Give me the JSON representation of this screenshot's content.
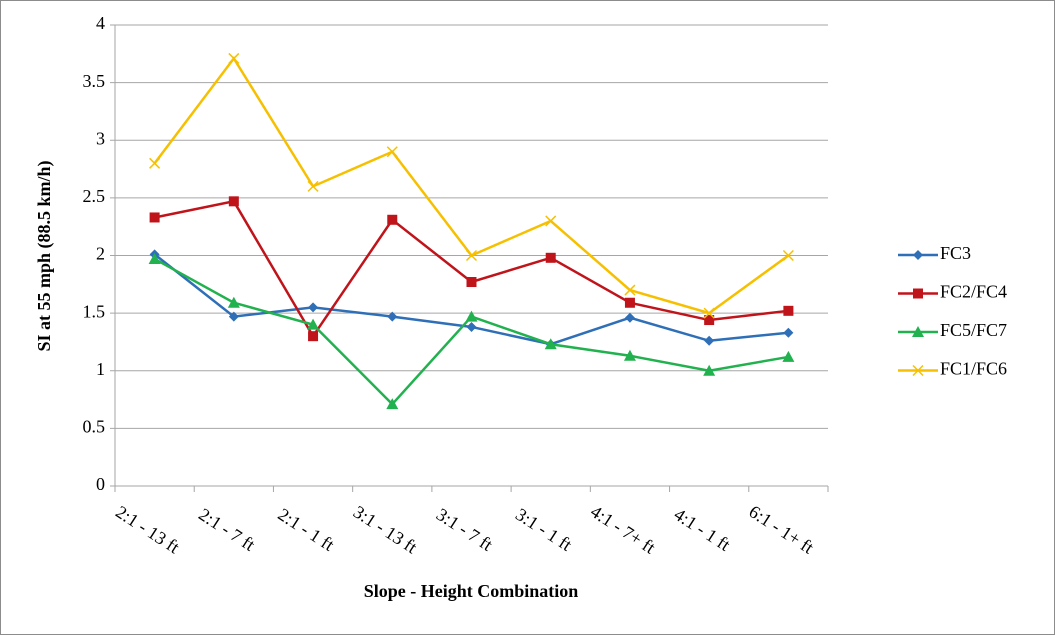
{
  "chart_data": {
    "type": "line",
    "x_label": "Slope - Height Combination",
    "y_label": "SI at 55 mph (88.5 km/h)",
    "categories": [
      "2:1 - 13 ft",
      "2:1 - 7 ft",
      "2:1 - 1 ft",
      "3:1 - 13 ft",
      "3:1 - 7 ft",
      "3:1 - 1 ft",
      "4:1 - 7+ ft",
      "4:1 - 1 ft",
      "6:1 - 1+ ft"
    ],
    "series": [
      {
        "name": "FC3",
        "color": "#2e6fb7",
        "marker": "diamond",
        "values": [
          2.01,
          1.47,
          1.55,
          1.47,
          1.38,
          1.23,
          1.46,
          1.26,
          1.33
        ]
      },
      {
        "name": "FC2/FC4",
        "color": "#c0141b",
        "marker": "square",
        "values": [
          2.33,
          2.47,
          1.3,
          2.31,
          1.77,
          1.98,
          1.59,
          1.44,
          1.52
        ]
      },
      {
        "name": "FC5/FC7",
        "color": "#22b14f",
        "marker": "triangle",
        "values": [
          1.97,
          1.59,
          1.4,
          0.71,
          1.47,
          1.23,
          1.13,
          1.0,
          1.12
        ]
      },
      {
        "name": "FC1/FC6",
        "color": "#f6c000",
        "marker": "x",
        "values": [
          2.8,
          3.71,
          2.6,
          2.9,
          2.0,
          2.3,
          1.7,
          1.5,
          2.0
        ]
      }
    ],
    "ylim": [
      0,
      4
    ],
    "yticks": [
      0,
      0.5,
      1,
      1.5,
      2,
      2.5,
      3,
      3.5,
      4
    ],
    "grid": true,
    "legend": "right"
  }
}
